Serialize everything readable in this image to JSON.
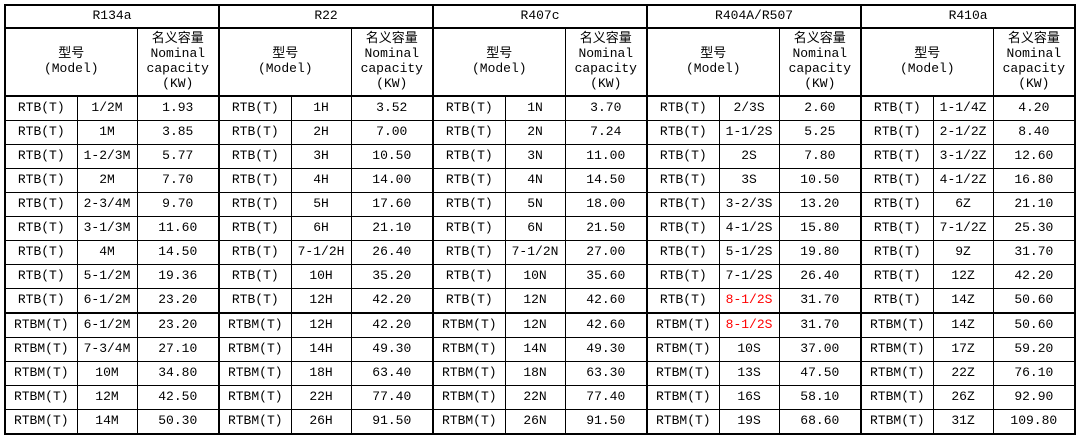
{
  "table": {
    "header": {
      "model_label": "型号\n(Model)",
      "capacity_label": "名义容量\nNominal\ncapacity\n(KW)"
    },
    "highlight_color": "#ff0000",
    "groups": [
      {
        "refrigerant": "R134a",
        "rows": [
          [
            "RTB(T)",
            "1/2M",
            "1.93",
            false
          ],
          [
            "RTB(T)",
            "1M",
            "3.85",
            false
          ],
          [
            "RTB(T)",
            "1-2/3M",
            "5.77",
            false
          ],
          [
            "RTB(T)",
            "2M",
            "7.70",
            false
          ],
          [
            "RTB(T)",
            "2-3/4M",
            "9.70",
            false
          ],
          [
            "RTB(T)",
            "3-1/3M",
            "11.60",
            false
          ],
          [
            "RTB(T)",
            "4M",
            "14.50",
            false
          ],
          [
            "RTB(T)",
            "5-1/2M",
            "19.36",
            false
          ],
          [
            "RTB(T)",
            "6-1/2M",
            "23.20",
            false
          ],
          [
            "RTBM(T)",
            "6-1/2M",
            "23.20",
            false
          ],
          [
            "RTBM(T)",
            "7-3/4M",
            "27.10",
            false
          ],
          [
            "RTBM(T)",
            "10M",
            "34.80",
            false
          ],
          [
            "RTBM(T)",
            "12M",
            "42.50",
            false
          ],
          [
            "RTBM(T)",
            "14M",
            "50.30",
            false
          ]
        ]
      },
      {
        "refrigerant": "R22",
        "rows": [
          [
            "RTB(T)",
            "1H",
            "3.52",
            false
          ],
          [
            "RTB(T)",
            "2H",
            "7.00",
            false
          ],
          [
            "RTB(T)",
            "3H",
            "10.50",
            false
          ],
          [
            "RTB(T)",
            "4H",
            "14.00",
            false
          ],
          [
            "RTB(T)",
            "5H",
            "17.60",
            false
          ],
          [
            "RTB(T)",
            "6H",
            "21.10",
            false
          ],
          [
            "RTB(T)",
            "7-1/2H",
            "26.40",
            false
          ],
          [
            "RTB(T)",
            "10H",
            "35.20",
            false
          ],
          [
            "RTB(T)",
            "12H",
            "42.20",
            false
          ],
          [
            "RTBM(T)",
            "12H",
            "42.20",
            false
          ],
          [
            "RTBM(T)",
            "14H",
            "49.30",
            false
          ],
          [
            "RTBM(T)",
            "18H",
            "63.40",
            false
          ],
          [
            "RTBM(T)",
            "22H",
            "77.40",
            false
          ],
          [
            "RTBM(T)",
            "26H",
            "91.50",
            false
          ]
        ]
      },
      {
        "refrigerant": "R407c",
        "rows": [
          [
            "RTB(T)",
            "1N",
            "3.70",
            false
          ],
          [
            "RTB(T)",
            "2N",
            "7.24",
            false
          ],
          [
            "RTB(T)",
            "3N",
            "11.00",
            false
          ],
          [
            "RTB(T)",
            "4N",
            "14.50",
            false
          ],
          [
            "RTB(T)",
            "5N",
            "18.00",
            false
          ],
          [
            "RTB(T)",
            "6N",
            "21.50",
            false
          ],
          [
            "RTB(T)",
            "7-1/2N",
            "27.00",
            false
          ],
          [
            "RTB(T)",
            "10N",
            "35.60",
            false
          ],
          [
            "RTB(T)",
            "12N",
            "42.60",
            false
          ],
          [
            "RTBM(T)",
            "12N",
            "42.60",
            false
          ],
          [
            "RTBM(T)",
            "14N",
            "49.30",
            false
          ],
          [
            "RTBM(T)",
            "18N",
            "63.30",
            false
          ],
          [
            "RTBM(T)",
            "22N",
            "77.40",
            false
          ],
          [
            "RTBM(T)",
            "26N",
            "91.50",
            false
          ]
        ]
      },
      {
        "refrigerant": "R404A/R507",
        "rows": [
          [
            "RTB(T)",
            "2/3S",
            "2.60",
            false
          ],
          [
            "RTB(T)",
            "1-1/2S",
            "5.25",
            false
          ],
          [
            "RTB(T)",
            "2S",
            "7.80",
            false
          ],
          [
            "RTB(T)",
            "3S",
            "10.50",
            false
          ],
          [
            "RTB(T)",
            "3-2/3S",
            "13.20",
            false
          ],
          [
            "RTB(T)",
            "4-1/2S",
            "15.80",
            false
          ],
          [
            "RTB(T)",
            "5-1/2S",
            "19.80",
            false
          ],
          [
            "RTB(T)",
            "7-1/2S",
            "26.40",
            false
          ],
          [
            "RTB(T)",
            "8-1/2S",
            "31.70",
            true
          ],
          [
            "RTBM(T)",
            "8-1/2S",
            "31.70",
            true
          ],
          [
            "RTBM(T)",
            "10S",
            "37.00",
            false
          ],
          [
            "RTBM(T)",
            "13S",
            "47.50",
            false
          ],
          [
            "RTBM(T)",
            "16S",
            "58.10",
            false
          ],
          [
            "RTBM(T)",
            "19S",
            "68.60",
            false
          ]
        ]
      },
      {
        "refrigerant": "R410a",
        "rows": [
          [
            "RTB(T)",
            "1-1/4Z",
            "4.20",
            false
          ],
          [
            "RTB(T)",
            "2-1/2Z",
            "8.40",
            false
          ],
          [
            "RTB(T)",
            "3-1/2Z",
            "12.60",
            false
          ],
          [
            "RTB(T)",
            "4-1/2Z",
            "16.80",
            false
          ],
          [
            "RTB(T)",
            "6Z",
            "21.10",
            false
          ],
          [
            "RTB(T)",
            "7-1/2Z",
            "25.30",
            false
          ],
          [
            "RTB(T)",
            "9Z",
            "31.70",
            false
          ],
          [
            "RTB(T)",
            "12Z",
            "42.20",
            false
          ],
          [
            "RTB(T)",
            "14Z",
            "50.60",
            false
          ],
          [
            "RTBM(T)",
            "14Z",
            "50.60",
            false
          ],
          [
            "RTBM(T)",
            "17Z",
            "59.20",
            false
          ],
          [
            "RTBM(T)",
            "22Z",
            "76.10",
            false
          ],
          [
            "RTBM(T)",
            "26Z",
            "92.90",
            false
          ],
          [
            "RTBM(T)",
            "31Z",
            "109.80",
            false
          ]
        ]
      }
    ]
  }
}
